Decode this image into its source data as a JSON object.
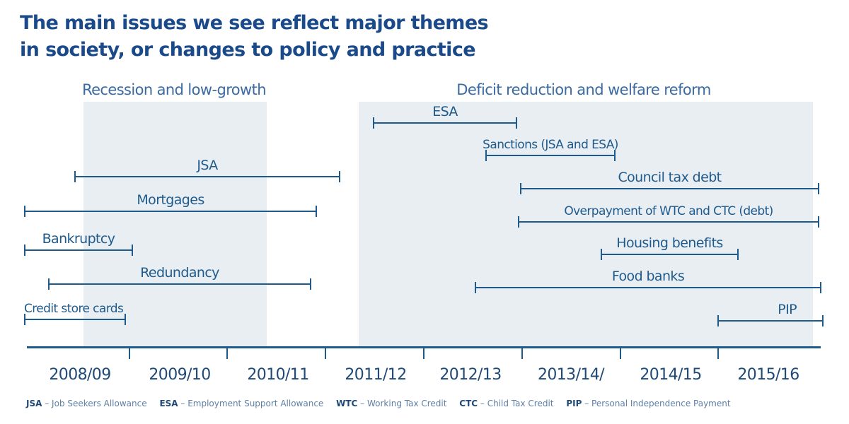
{
  "title": {
    "line1": "The main issues we see reflect major themes",
    "line2": "in society, or changes to policy and practice"
  },
  "eras": [
    {
      "label": "Recession and low-growth"
    },
    {
      "label": "Deficit reduction and welfare reform"
    }
  ],
  "timeline": [
    {
      "label": "ESA"
    },
    {
      "label": "Sanctions (JSA and ESA)"
    },
    {
      "label": "JSA"
    },
    {
      "label": "Council tax debt"
    },
    {
      "label": "Mortgages"
    },
    {
      "label": "Overpayment of WTC and CTC (debt)"
    },
    {
      "label": "Bankruptcy"
    },
    {
      "label": "Housing benefits"
    },
    {
      "label": "Redundancy"
    },
    {
      "label": "Food banks"
    },
    {
      "label": "Credit store cards"
    },
    {
      "label": "PIP"
    }
  ],
  "years": [
    "2008/09",
    "2009/10",
    "2010/11",
    "2011/12",
    "2012/13",
    "2013/14/",
    "2014/15",
    "2015/16"
  ],
  "footnotes": [
    {
      "abbr": "JSA",
      "text": " – Job Seekers Allowance"
    },
    {
      "abbr": "ESA",
      "text": " – Employment Support Allowance"
    },
    {
      "abbr": "WTC",
      "text": " – Working Tax Credit"
    },
    {
      "abbr": "CTC",
      "text": " – Child Tax Credit"
    },
    {
      "abbr": "PIP",
      "text": " – Personal Independence Payment"
    }
  ]
}
